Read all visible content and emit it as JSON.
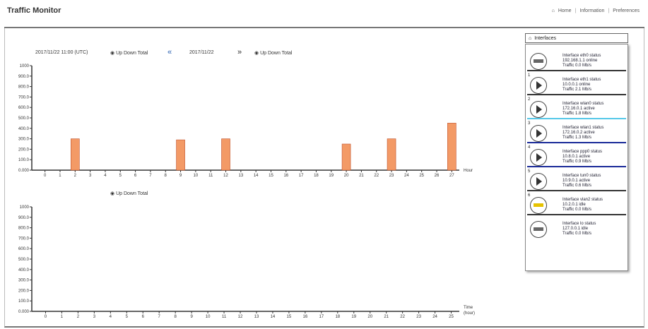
{
  "app": {
    "title": "Traffic Monitor",
    "links": [
      "Home",
      "Information",
      "Preferences"
    ]
  },
  "controls": {
    "date_label": "2017/11/22 11:00 (UTC)",
    "chart1_radio": "Up Down Total",
    "nav_prev": "«",
    "time_label": "2017/11/22",
    "nav_next": "»",
    "right_label": "Up Down Total",
    "chart2_radio": "Up Down Total"
  },
  "panel": {
    "title": "Interfaces",
    "rows": [
      {
        "num": "",
        "icon": "minus",
        "line1": "Interface eth0 status",
        "line2": "192.168.1.1 online",
        "line3": "Traffic 0.0 Mb/s",
        "sep": "#333"
      },
      {
        "num": "1",
        "icon": "play",
        "line1": "Interface eth1 status",
        "line2": "10.0.0.1 online",
        "line3": "Traffic 2.1 Mb/s",
        "sep": "#333"
      },
      {
        "num": "2",
        "icon": "play",
        "line1": "Interface wlan0 status",
        "line2": "172.16.0.1 active",
        "line3": "Traffic 1.8 Mb/s",
        "sep": "#55c8e8"
      },
      {
        "num": "3",
        "icon": "play-alert",
        "line1": "Interface wlan1 status",
        "line2": "172.16.0.2 active",
        "line3": "Traffic 1.3 Mb/s",
        "sep": "#1a2a99"
      },
      {
        "num": "4",
        "icon": "play",
        "line1": "Interface ppp0 status",
        "line2": "10.8.0.1 active",
        "line3": "Traffic 0.9 Mb/s",
        "sep": "#1a2a99"
      },
      {
        "num": "5",
        "icon": "play",
        "line1": "Interface tun0 status",
        "line2": "10.9.0.1 active",
        "line3": "Traffic 0.6 Mb/s",
        "sep": "#333"
      },
      {
        "num": "6",
        "icon": "minus-yellow",
        "line1": "Interface vlan2 status",
        "line2": "10.2.0.1 idle",
        "line3": "Traffic 0.0 Mb/s",
        "sep": "#333"
      },
      {
        "num": "",
        "icon": "minus",
        "line1": "Interface lo status",
        "line2": "127.0.0.1 idle",
        "line3": "Traffic 0.0 Mb/s",
        "sep": "none"
      }
    ]
  },
  "chart_data": [
    {
      "type": "bar",
      "title": "",
      "xlabel": "Hour",
      "ylabel": "",
      "ylim": [
        0,
        1000
      ],
      "yticks": [
        "0.000",
        "100.0",
        "200.0",
        "300.0",
        "400.0",
        "500.0",
        "600.0",
        "700.0",
        "800.0",
        "900.0",
        "1000"
      ],
      "categories": [
        "0",
        "1",
        "2",
        "3",
        "4",
        "5",
        "6",
        "7",
        "8",
        "9",
        "10",
        "11",
        "12",
        "13",
        "14",
        "15",
        "16",
        "17",
        "18",
        "19",
        "20",
        "21",
        "22",
        "23",
        "24",
        "25",
        "26",
        "27"
      ],
      "values": [
        0,
        0,
        300,
        0,
        0,
        0,
        0,
        0,
        0,
        290,
        0,
        0,
        300,
        0,
        0,
        0,
        0,
        0,
        0,
        0,
        250,
        0,
        0,
        300,
        0,
        0,
        0,
        450
      ],
      "grid": false,
      "bar_color": "#f39a66"
    },
    {
      "type": "bar",
      "title": "",
      "xlabel": "Time (hour)",
      "ylabel": "",
      "ylim": [
        0,
        1000
      ],
      "yticks": [
        "0.000",
        "100.0",
        "200.0",
        "300.0",
        "400.0",
        "500.0",
        "600.0",
        "700.0",
        "800.0",
        "900.0",
        "1000"
      ],
      "categories": [
        "0",
        "1",
        "2",
        "3",
        "4",
        "5",
        "6",
        "7",
        "8",
        "9",
        "10",
        "11",
        "12",
        "13",
        "14",
        "15",
        "16",
        "17",
        "18",
        "19",
        "20",
        "21",
        "22",
        "23",
        "24",
        "25"
      ],
      "values": [
        0,
        0,
        0,
        0,
        0,
        0,
        0,
        0,
        0,
        0,
        0,
        0,
        0,
        0,
        0,
        0,
        0,
        0,
        0,
        0,
        0,
        0,
        0,
        0,
        0,
        0
      ],
      "grid": false,
      "bar_color": "#f39a66"
    }
  ]
}
